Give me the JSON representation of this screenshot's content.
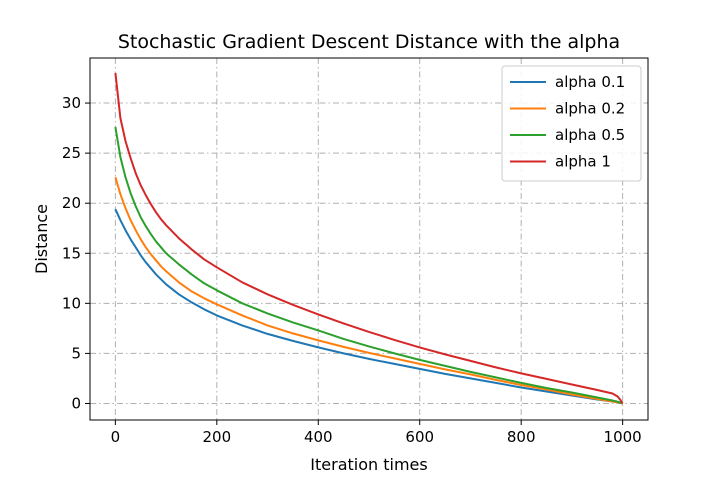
{
  "chart_data": {
    "type": "line",
    "title": "Stochastic Gradient Descent Distance with the alpha",
    "xlabel": "Iteration times",
    "ylabel": "Distance",
    "xlim": [
      -50,
      1050
    ],
    "ylim": [
      -1.65,
      34.5
    ],
    "xticks": [
      0,
      200,
      400,
      600,
      800,
      1000
    ],
    "yticks": [
      0,
      5,
      10,
      15,
      20,
      25,
      30
    ],
    "grid": true,
    "grid_style": "dashdot",
    "legend_position": "top-right",
    "x": [
      0,
      10,
      20,
      30,
      40,
      50,
      60,
      70,
      80,
      90,
      100,
      125,
      150,
      175,
      200,
      250,
      300,
      350,
      400,
      450,
      500,
      550,
      600,
      650,
      700,
      750,
      800,
      850,
      900,
      950,
      980,
      990,
      995,
      1000
    ],
    "series": [
      {
        "name": "alpha 0.1",
        "color": "#1f77b4",
        "values": [
          19.4,
          18.3,
          17.3,
          16.4,
          15.6,
          14.8,
          14.1,
          13.5,
          12.9,
          12.4,
          11.9,
          10.9,
          10.1,
          9.4,
          8.8,
          7.8,
          6.95,
          6.25,
          5.6,
          5.0,
          4.45,
          3.95,
          3.45,
          2.95,
          2.5,
          2.05,
          1.6,
          1.2,
          0.8,
          0.4,
          0.2,
          0.12,
          0.06,
          0.0
        ]
      },
      {
        "name": "alpha 0.2",
        "color": "#ff7f0e",
        "values": [
          22.6,
          20.9,
          19.5,
          18.3,
          17.3,
          16.4,
          15.6,
          14.9,
          14.3,
          13.7,
          13.2,
          12.1,
          11.2,
          10.5,
          9.9,
          8.8,
          7.8,
          7.0,
          6.3,
          5.65,
          5.05,
          4.5,
          3.95,
          3.4,
          2.9,
          2.35,
          1.85,
          1.4,
          0.9,
          0.45,
          0.2,
          0.12,
          0.06,
          0.0
        ]
      },
      {
        "name": "alpha 0.5",
        "color": "#2ca02c",
        "values": [
          27.6,
          24.6,
          22.6,
          21.0,
          19.7,
          18.6,
          17.7,
          16.9,
          16.2,
          15.6,
          15.0,
          13.9,
          12.9,
          12.0,
          11.3,
          10.0,
          9.0,
          8.1,
          7.3,
          6.45,
          5.7,
          5.0,
          4.35,
          3.75,
          3.15,
          2.6,
          2.05,
          1.55,
          1.1,
          0.6,
          0.3,
          0.18,
          0.1,
          0.0
        ]
      },
      {
        "name": "alpha 1",
        "color": "#d62728",
        "values": [
          33.0,
          28.5,
          26.2,
          24.5,
          23.0,
          21.8,
          20.8,
          19.9,
          19.1,
          18.4,
          17.8,
          16.5,
          15.4,
          14.4,
          13.6,
          12.1,
          10.9,
          9.85,
          8.9,
          8.0,
          7.15,
          6.35,
          5.6,
          4.9,
          4.25,
          3.6,
          3.0,
          2.45,
          1.9,
          1.35,
          1.0,
          0.7,
          0.4,
          0.0
        ]
      }
    ]
  }
}
